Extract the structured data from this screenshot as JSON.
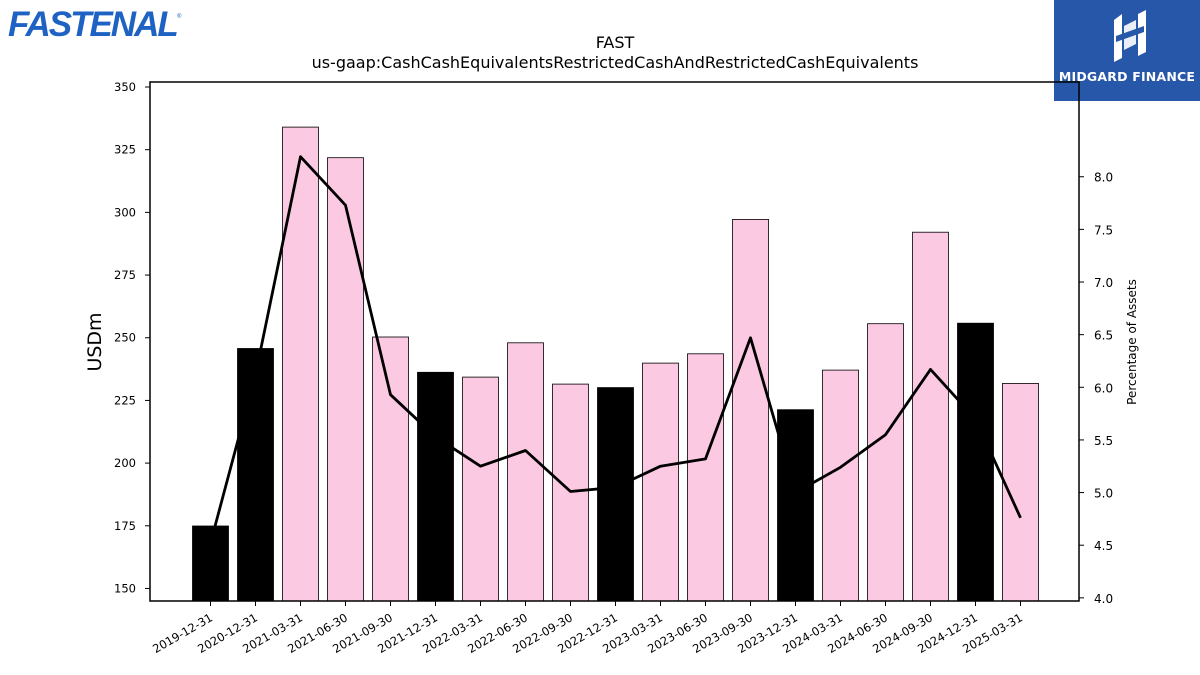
{
  "logos": {
    "left_brand": "FASTENAL",
    "right_brand": "MIDGARD FINANCE"
  },
  "colors": {
    "bar_annual": "#000000",
    "bar_quarter": "#fbc9e2",
    "line": "#000000",
    "right_logo_bg": "#2757a8",
    "left_logo": "#1e63c3"
  },
  "chart_data": {
    "type": "bar",
    "title": "FAST",
    "subtitle": "us-gaap:CashCashEquivalentsRestrictedCashAndRestrictedCashEquivalents",
    "ylabel": "USDm",
    "y2label": "Percentage of Assets",
    "ylim": [
      145,
      352
    ],
    "y2lim": [
      3.97,
      8.9
    ],
    "yticks": [
      150,
      175,
      200,
      225,
      250,
      275,
      300,
      325,
      350
    ],
    "y2ticks": [
      "4.0",
      "4.5",
      "5.0",
      "5.5",
      "6.0",
      "6.5",
      "7.0",
      "7.5",
      "8.0"
    ],
    "categories": [
      "2019-12-31",
      "2020-12-31",
      "2021-03-31",
      "2021-06-30",
      "2021-09-30",
      "2021-12-31",
      "2022-03-31",
      "2022-06-30",
      "2022-09-30",
      "2022-12-31",
      "2023-03-31",
      "2023-06-30",
      "2023-09-30",
      "2023-12-31",
      "2024-03-31",
      "2024-06-30",
      "2024-09-30",
      "2024-12-31",
      "2025-03-31"
    ],
    "series": [
      {
        "values": [
          174.9,
          245.7,
          334.0,
          321.8,
          250.3,
          236.2,
          234.3,
          248.0,
          231.5,
          230.1,
          239.9,
          243.6,
          297.2,
          221.3,
          237.1,
          255.6,
          292.1,
          255.8,
          231.8
        ],
        "annual": [
          true,
          true,
          false,
          false,
          false,
          true,
          false,
          false,
          false,
          true,
          false,
          false,
          false,
          true,
          false,
          false,
          false,
          true,
          false
        ]
      },
      {
        "values": [
          4.52,
          6.12,
          8.19,
          7.73,
          5.93,
          5.53,
          5.25,
          5.4,
          5.01,
          5.05,
          5.25,
          5.32,
          6.47,
          5.0,
          5.24,
          5.55,
          6.17,
          5.7,
          4.76
        ]
      }
    ],
    "legend": "none",
    "grid": false
  }
}
